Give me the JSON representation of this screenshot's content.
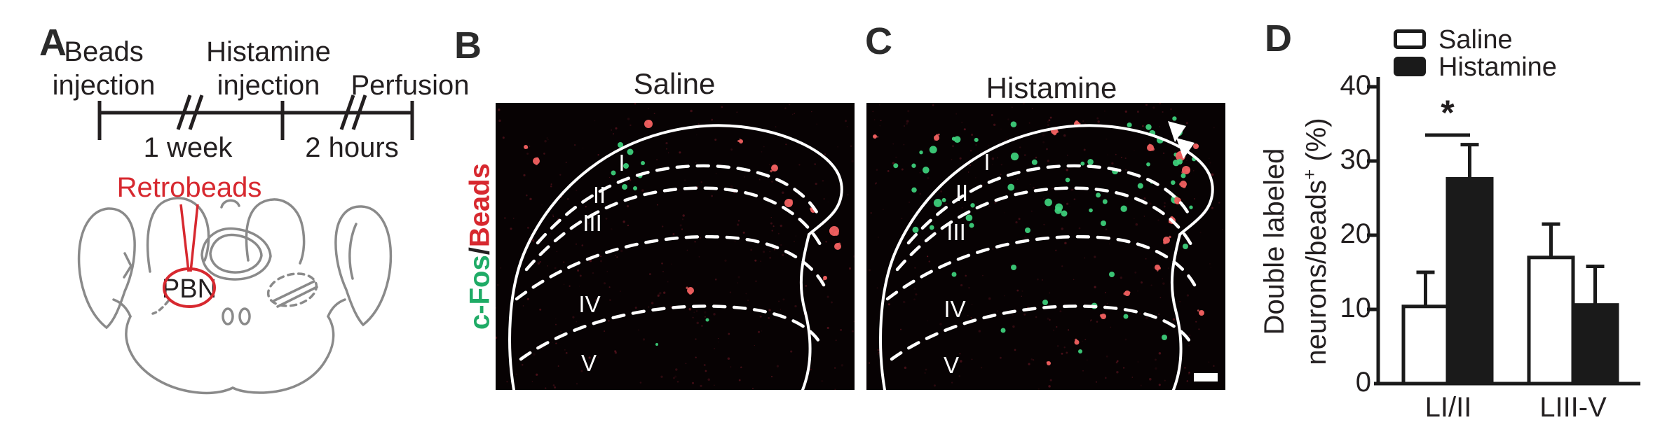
{
  "panels": {
    "a": "A",
    "b": "B",
    "c": "C",
    "d": "D"
  },
  "panel_a": {
    "timeline": {
      "event1_line1": "Beads",
      "event1_line2": "injection",
      "event2_line1": "Histamine",
      "event2_line2": "injection",
      "event3": "Perfusion",
      "interval1": "1 week",
      "interval2": "2 hours"
    },
    "retrobeads_label": "Retrobeads",
    "brain_region_label": "PBN",
    "colors": {
      "retrobeads": "#d7282f",
      "brain_outline": "#8a8a8a"
    }
  },
  "panel_b": {
    "title": "Saline"
  },
  "panel_c": {
    "title": "Histamine"
  },
  "micrographs": {
    "stain_label": {
      "green_part": "c-Fos",
      "separator": "/",
      "red_part": "Beads"
    },
    "layers": [
      "I",
      "II",
      "III",
      "IV",
      "V"
    ],
    "colors": {
      "cfos_green": "#3fd47e",
      "beads_red": "#f16060",
      "outline_white": "#ffffff",
      "background": "#070203",
      "green_text": "#1fab66",
      "red_text": "#d7282f"
    }
  },
  "chart_data": {
    "type": "bar",
    "title": "",
    "categories": [
      "LI/II",
      "LIII-V"
    ],
    "series": [
      {
        "name": "Saline",
        "values": [
          10.4,
          17.0
        ],
        "errors": [
          4.6,
          4.5
        ],
        "fill": "#ffffff"
      },
      {
        "name": "Histamine",
        "values": [
          27.6,
          10.6
        ],
        "errors": [
          4.6,
          5.2
        ],
        "fill": "#1a1a1a"
      }
    ],
    "ylabel_line1": "Double labeled",
    "ylabel_line2_pre": "neurons/beads",
    "ylabel_sup": "+",
    "ylabel_line2_post": " (%)",
    "ylim": [
      0,
      40
    ],
    "yticks": [
      40,
      30,
      20,
      10,
      0
    ],
    "grid": false,
    "legend_position": "top",
    "significance": {
      "label": "*",
      "between": "LI/II pair"
    }
  }
}
